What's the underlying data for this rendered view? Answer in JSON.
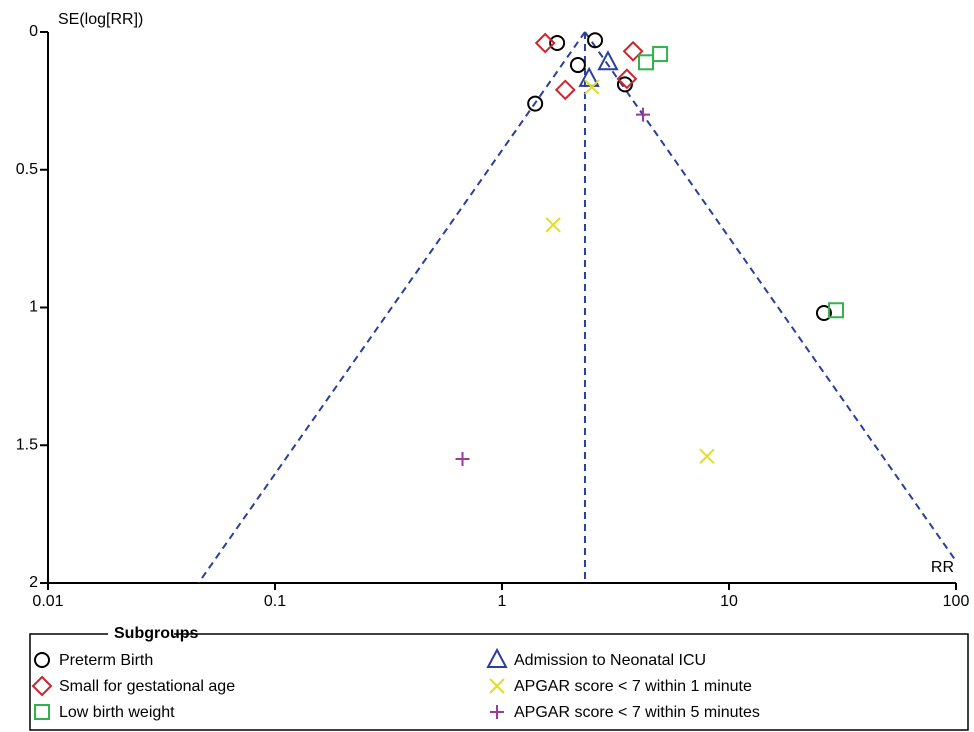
{
  "chart_data": {
    "type": "scatter",
    "x_scale": "log",
    "y_inverted": true,
    "xlabel": "RR",
    "ylabel": "SE(log[RR])",
    "xlim": [
      0.01,
      100
    ],
    "xticks": [
      0.01,
      0.1,
      1,
      10,
      100
    ],
    "ylim": [
      0,
      2
    ],
    "yticks": [
      0,
      0.5,
      1,
      1.5,
      2
    ],
    "pooled_rr": 2.32,
    "funnel_color": "#2a3f9c",
    "legend_title": "Subgroups",
    "legend_position": "bottom",
    "series": [
      {
        "name": "Preterm Birth",
        "marker": "circle",
        "color": "#000000",
        "x": [
          1.75,
          2.57,
          2.16,
          3.48,
          1.4,
          26.2
        ],
        "y": [
          0.04,
          0.03,
          0.12,
          0.19,
          0.26,
          1.02
        ]
      },
      {
        "name": "Small for gestational age",
        "marker": "diamond",
        "color": "#c8262c",
        "x": [
          1.55,
          3.78,
          3.55,
          1.9
        ],
        "y": [
          0.04,
          0.07,
          0.17,
          0.21
        ]
      },
      {
        "name": "Low birth weight",
        "marker": "square",
        "color": "#2fb34a",
        "x": [
          4.97,
          4.31,
          29.6
        ],
        "y": [
          0.08,
          0.11,
          1.01
        ]
      },
      {
        "name": "Admission to Neonatal ICU",
        "marker": "triangle",
        "color": "#2a3f9c",
        "x": [
          2.93,
          2.42
        ],
        "y": [
          0.11,
          0.17
        ]
      },
      {
        "name": "APGAR score < 7 within 1 minute",
        "marker": "x",
        "color": "#e3dc2a",
        "x": [
          2.49,
          1.68,
          8.0
        ],
        "y": [
          0.2,
          0.7,
          1.54
        ]
      },
      {
        "name": "APGAR score < 7 within 5 minutes",
        "marker": "plus",
        "color": "#9b3a97",
        "x": [
          4.18,
          0.67
        ],
        "y": [
          0.3,
          1.55
        ]
      }
    ]
  }
}
